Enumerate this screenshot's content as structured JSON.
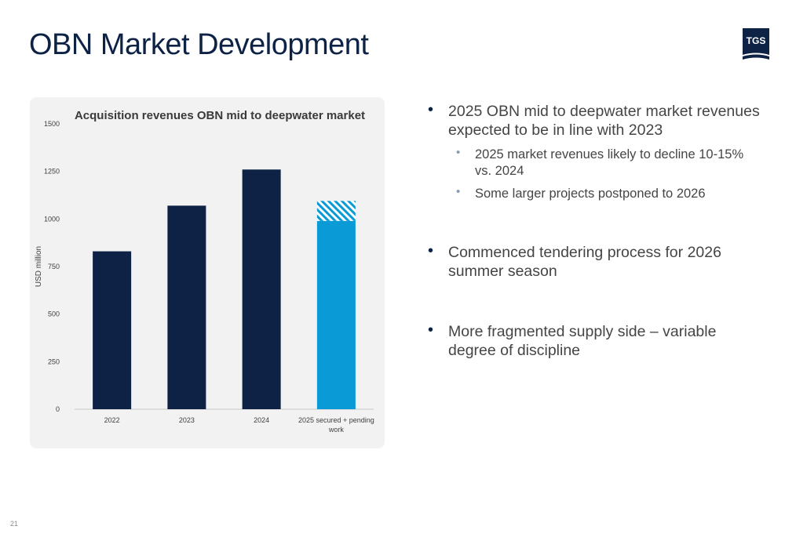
{
  "slide": {
    "title": "OBN Market Development",
    "page_number": "21",
    "logo_text": "TGS",
    "colors": {
      "navy": "#0d2245",
      "accent_blue": "#0a9ad6",
      "text_gray": "#454545",
      "panel_bg": "#f2f2f2"
    }
  },
  "chart_data": {
    "type": "bar",
    "title": "Acquisition revenues OBN mid to deepwater market",
    "xlabel": "",
    "ylabel": "USD million",
    "ylim": [
      0,
      1500
    ],
    "yticks": [
      "0",
      "250",
      "500",
      "750",
      "1000",
      "1250",
      "1500"
    ],
    "categories": [
      "2022",
      "2023",
      "2024",
      "2025 secured + pending work"
    ],
    "category_labels": [
      [
        "2022"
      ],
      [
        "2023"
      ],
      [
        "2024"
      ],
      [
        "2025 secured + pending",
        "work"
      ]
    ],
    "series": [
      {
        "values": [
          830,
          1070,
          1260,
          990
        ],
        "colors": [
          "#0d2245",
          "#0d2245",
          "#0d2245",
          "#0a9ad6"
        ],
        "style": "solid"
      },
      {
        "values": [
          0,
          0,
          0,
          105
        ],
        "colors": [
          "#0a9ad6",
          "#0a9ad6",
          "#0a9ad6",
          "#0a9ad6"
        ],
        "style": "hatched"
      }
    ],
    "grid": false,
    "legend": "none"
  },
  "bullets": [
    {
      "text": "2025 OBN mid to deepwater market revenues expected to be in line with 2023",
      "subs": [
        "2025 market revenues likely to decline 10-15% vs. 2024",
        "Some larger projects postponed to 2026"
      ]
    },
    {
      "text": "Commenced tendering process for 2026 summer season",
      "subs": []
    },
    {
      "text": "More fragmented supply side – variable degree of discipline",
      "subs": []
    }
  ],
  "bullet_char": "•"
}
